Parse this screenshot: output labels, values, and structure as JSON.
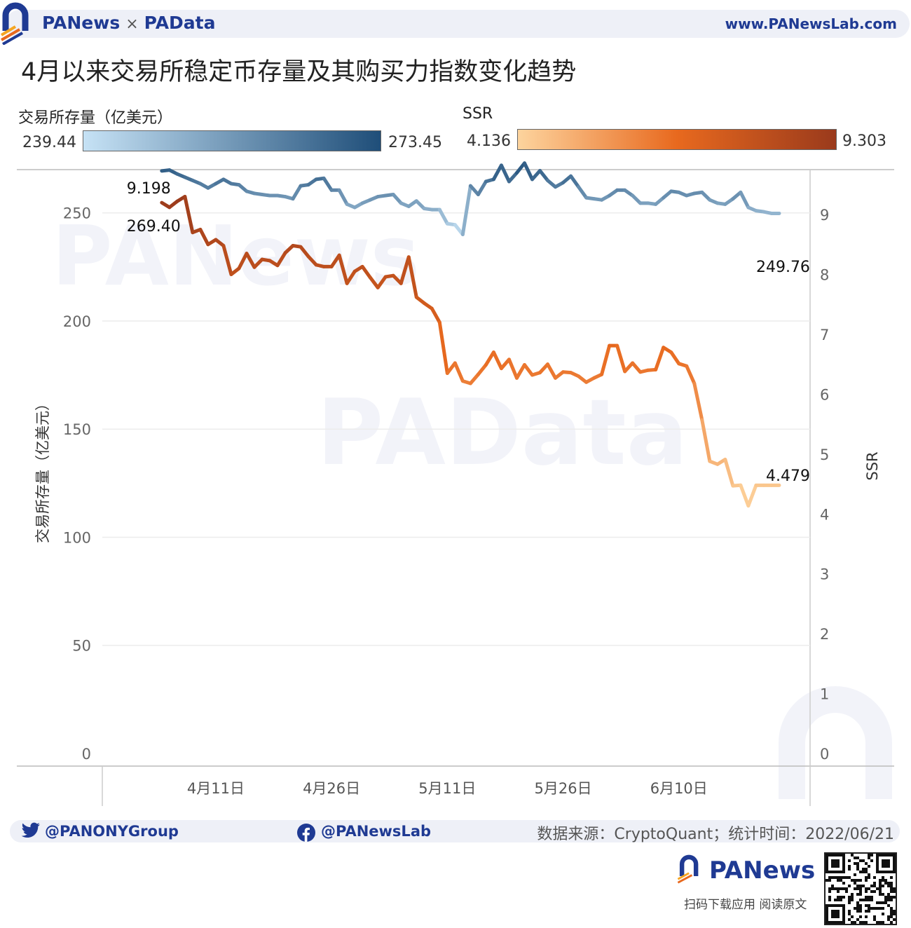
{
  "header": {
    "brand_left": "PANews",
    "brand_sep": "×",
    "brand_right": "PAData",
    "website": "www.PANewsLab.com"
  },
  "title": "4月以来交易所稳定币存量及其购买力指数变化趋势",
  "legend": {
    "stock": {
      "label": "交易所存量（亿美元）",
      "min": "239.44",
      "max": "273.45",
      "color_low": "#c6e2f5",
      "color_high": "#1f4e79"
    },
    "ssr": {
      "label": "SSR",
      "min": "4.136",
      "max": "9.303",
      "color_low": "#fdd49e",
      "color_mid": "#e8691e",
      "color_high": "#9a3a1c"
    }
  },
  "chart_data": {
    "type": "line",
    "x_ticks": [
      "4月11日",
      "4月26日",
      "5月11日",
      "5月26日",
      "6月10日"
    ],
    "ylabel": "交易所存量（亿美元）",
    "y2label": "SSR",
    "ylim": [
      0,
      270
    ],
    "y2lim": [
      0,
      9.75
    ],
    "y_ticks": [
      0,
      50,
      100,
      150,
      200,
      250
    ],
    "y2_ticks": [
      0,
      1,
      2,
      3,
      4,
      5,
      6,
      7,
      8,
      9
    ],
    "grid": true,
    "series": [
      {
        "name": "交易所存量（亿美元）",
        "axis": "left",
        "start_label": "269.40",
        "end_label": "249.76",
        "x": [
          0,
          1,
          2,
          3,
          4,
          5,
          6,
          7,
          8,
          9,
          10,
          11,
          12,
          13,
          14,
          15,
          16,
          17,
          18,
          19,
          20,
          21,
          22,
          23,
          24,
          25,
          26,
          27,
          28,
          29,
          30,
          31,
          32,
          33,
          34,
          35,
          36,
          37,
          38,
          39,
          40,
          41,
          42,
          43,
          44,
          45,
          46,
          47,
          48,
          49,
          50,
          51,
          52,
          53,
          54,
          55,
          56,
          57,
          58,
          59,
          60,
          61,
          62,
          63,
          64,
          65,
          66,
          67,
          68,
          69,
          70,
          71,
          72,
          73,
          74,
          75,
          76,
          77,
          78,
          79,
          80
        ],
        "values": [
          269.4,
          269.8,
          268.0,
          266.5,
          265.0,
          263.5,
          261.5,
          263.5,
          265.5,
          263.5,
          263.0,
          260.0,
          259.0,
          258.5,
          258.0,
          258.0,
          257.5,
          256.5,
          262.5,
          263.0,
          265.5,
          266.0,
          260.5,
          260.5,
          254.0,
          252.5,
          254.5,
          256.0,
          257.5,
          258.0,
          258.5,
          254.5,
          253.0,
          255.5,
          252.0,
          251.5,
          251.5,
          245.0,
          244.5,
          240.0,
          262.5,
          258.5,
          264.5,
          265.5,
          272.0,
          264.5,
          268.5,
          273.0,
          265.5,
          269.5,
          265.0,
          262.0,
          264.0,
          267.0,
          262.0,
          257.0,
          256.5,
          256.0,
          258.0,
          260.5,
          260.5,
          258.0,
          254.5,
          254.5,
          254.0,
          257.0,
          260.0,
          259.5,
          258.0,
          259.0,
          259.5,
          256.0,
          254.5,
          254.0,
          256.5,
          259.5,
          252.5,
          251.0,
          250.5,
          249.76,
          249.76
        ]
      },
      {
        "name": "SSR",
        "axis": "right",
        "start_label": "9.198",
        "end_label": "4.479",
        "x": [
          0,
          1,
          2,
          3,
          4,
          5,
          6,
          7,
          8,
          9,
          10,
          11,
          12,
          13,
          14,
          15,
          16,
          17,
          18,
          19,
          20,
          21,
          22,
          23,
          24,
          25,
          26,
          27,
          28,
          29,
          30,
          31,
          32,
          33,
          34,
          35,
          36,
          37,
          38,
          39,
          40,
          41,
          42,
          43,
          44,
          45,
          46,
          47,
          48,
          49,
          50,
          51,
          52,
          53,
          54,
          55,
          56,
          57,
          58,
          59,
          60,
          61,
          62,
          63,
          64,
          65,
          66,
          67,
          68,
          69,
          70,
          71,
          72,
          73,
          74,
          75,
          76,
          77,
          78,
          79,
          80
        ],
        "values": [
          9.198,
          9.12,
          9.22,
          9.3,
          8.7,
          8.75,
          8.5,
          8.58,
          8.48,
          8.0,
          8.1,
          8.35,
          8.12,
          8.25,
          8.23,
          8.15,
          8.36,
          8.48,
          8.46,
          8.3,
          8.16,
          8.13,
          8.13,
          8.32,
          7.85,
          8.05,
          8.13,
          7.95,
          7.78,
          7.96,
          7.98,
          7.85,
          8.29,
          7.62,
          7.52,
          7.43,
          7.2,
          6.35,
          6.52,
          6.22,
          6.18,
          6.33,
          6.49,
          6.7,
          6.43,
          6.58,
          6.27,
          6.49,
          6.32,
          6.36,
          6.5,
          6.27,
          6.37,
          6.36,
          6.3,
          6.2,
          6.27,
          6.33,
          6.81,
          6.81,
          6.38,
          6.52,
          6.37,
          6.4,
          6.41,
          6.78,
          6.7,
          6.51,
          6.47,
          6.18,
          5.57,
          4.88,
          4.83,
          4.91,
          4.47,
          4.48,
          4.136,
          4.479,
          4.479,
          4.479,
          4.479
        ]
      }
    ]
  },
  "footer": {
    "twitter": "@PANONYGroup",
    "facebook": "@PANewsLab",
    "source": "数据来源：CryptoQuant；统计时间：2022/06/21",
    "brand": "PANews",
    "cta": "扫码下载应用  阅读原文"
  },
  "watermarks": {
    "top": "PANews",
    "center": "PAData"
  }
}
